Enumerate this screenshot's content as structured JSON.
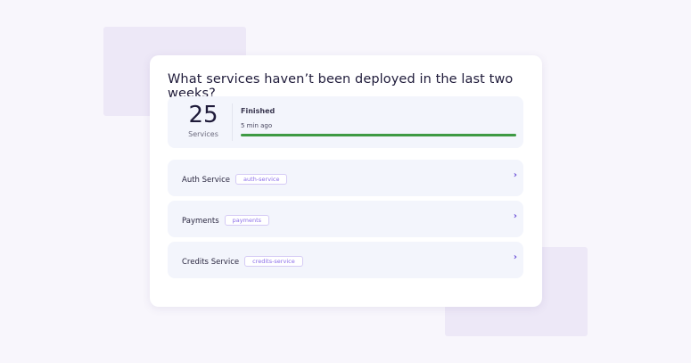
{
  "colors": {
    "accent": "#6a4fd8",
    "progress": "#3e9a44",
    "background": "#f8f6fc"
  },
  "question": "What services haven’t been deployed in the last two weeks?",
  "summary": {
    "count": "25",
    "count_label": "Services",
    "status": "Finished",
    "time": "5 min ago",
    "progress_percent": 100
  },
  "services": [
    {
      "name": "Auth Service",
      "tag": "auth-service",
      "icon": "chevron-right-icon"
    },
    {
      "name": "Payments",
      "tag": "payments",
      "icon": "chevron-right-icon"
    },
    {
      "name": "Credits Service",
      "tag": "credits-service",
      "icon": "chevron-right-icon"
    }
  ]
}
